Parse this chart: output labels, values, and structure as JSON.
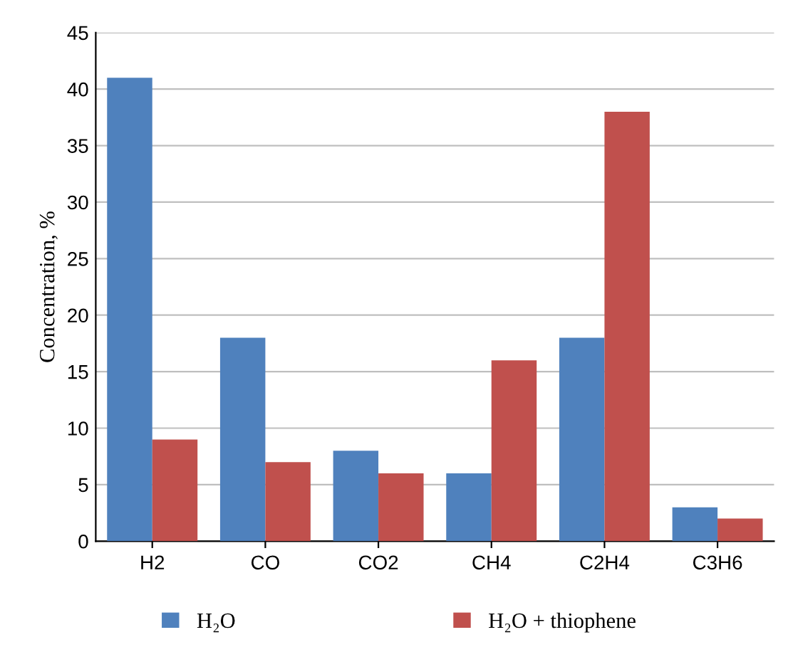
{
  "chart_data": {
    "type": "bar",
    "ylabel": "Concentration, %",
    "categories": [
      "H2",
      "CO",
      "CO2",
      "CH4",
      "C2H4",
      "C3H6"
    ],
    "series": [
      {
        "name": "H₂O",
        "color": "#4f81bd",
        "values": [
          41,
          18,
          8,
          6,
          18,
          3
        ]
      },
      {
        "name": "H₂O + thiophene",
        "color": "#c0504d",
        "values": [
          9,
          7,
          6,
          16,
          38,
          2
        ]
      }
    ],
    "ylim": [
      0,
      45
    ],
    "yticks": [
      0,
      5,
      10,
      15,
      20,
      25,
      30,
      35,
      40,
      45
    ],
    "grid": "y",
    "legend": "bottom"
  }
}
